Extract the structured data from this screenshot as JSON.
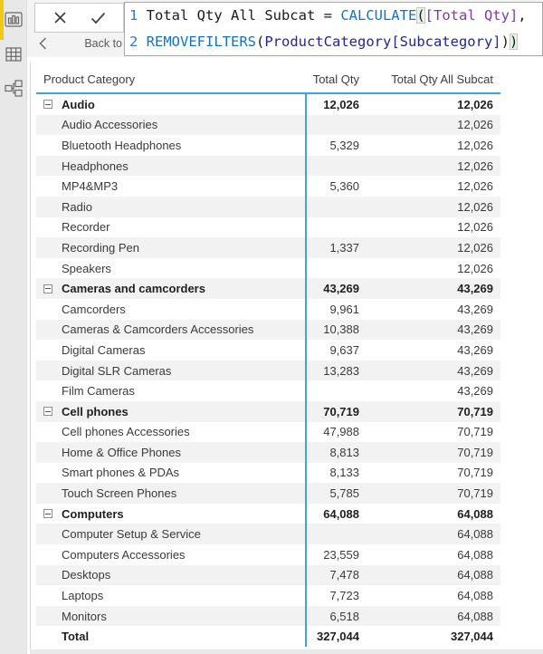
{
  "sidebar": {
    "items": [
      {
        "name": "report-view",
        "active": true
      },
      {
        "name": "data-view",
        "active": false
      },
      {
        "name": "model-view",
        "active": false
      }
    ]
  },
  "formula_bar": {
    "back_label": "Back to",
    "cancel_icon": "x-icon",
    "commit_icon": "check-icon",
    "lines": [
      {
        "number": "1",
        "tokens": [
          {
            "text": "Total Qty All Subcat = ",
            "type": "plain"
          },
          {
            "text": "CALCULATE",
            "type": "function"
          },
          {
            "text": "(",
            "type": "bracket"
          },
          {
            "text": "[Total Qty]",
            "type": "measure"
          },
          {
            "text": ",",
            "type": "plain"
          }
        ]
      },
      {
        "number": "2",
        "tokens": [
          {
            "text": "REMOVEFILTERS",
            "type": "function"
          },
          {
            "text": "(",
            "type": "plain"
          },
          {
            "text": "ProductCategory[Subcategory]",
            "type": "column"
          },
          {
            "text": ")",
            "type": "plain"
          },
          {
            "text": ")",
            "type": "bracket"
          }
        ]
      }
    ]
  },
  "matrix": {
    "columns": [
      "Product Category",
      "Total Qty",
      "Total Qty All Subcat"
    ],
    "rows": [
      {
        "label": "Audio",
        "type": "category",
        "qty": "12,026",
        "qty_all": "12,026"
      },
      {
        "label": "Audio Accessories",
        "type": "sub",
        "qty": "",
        "qty_all": "12,026"
      },
      {
        "label": "Bluetooth Headphones",
        "type": "sub",
        "qty": "5,329",
        "qty_all": "12,026"
      },
      {
        "label": "Headphones",
        "type": "sub",
        "qty": "",
        "qty_all": "12,026"
      },
      {
        "label": "MP4&MP3",
        "type": "sub",
        "qty": "5,360",
        "qty_all": "12,026"
      },
      {
        "label": "Radio",
        "type": "sub",
        "qty": "",
        "qty_all": "12,026"
      },
      {
        "label": "Recorder",
        "type": "sub",
        "qty": "",
        "qty_all": "12,026"
      },
      {
        "label": "Recording Pen",
        "type": "sub",
        "qty": "1,337",
        "qty_all": "12,026"
      },
      {
        "label": "Speakers",
        "type": "sub",
        "qty": "",
        "qty_all": "12,026"
      },
      {
        "label": "Cameras and camcorders",
        "type": "category",
        "qty": "43,269",
        "qty_all": "43,269"
      },
      {
        "label": "Camcorders",
        "type": "sub",
        "qty": "9,961",
        "qty_all": "43,269"
      },
      {
        "label": "Cameras & Camcorders Accessories",
        "type": "sub",
        "qty": "10,388",
        "qty_all": "43,269"
      },
      {
        "label": "Digital Cameras",
        "type": "sub",
        "qty": "9,637",
        "qty_all": "43,269"
      },
      {
        "label": "Digital SLR Cameras",
        "type": "sub",
        "qty": "13,283",
        "qty_all": "43,269"
      },
      {
        "label": "Film Cameras",
        "type": "sub",
        "qty": "",
        "qty_all": "43,269"
      },
      {
        "label": "Cell phones",
        "type": "category",
        "qty": "70,719",
        "qty_all": "70,719"
      },
      {
        "label": "Cell phones Accessories",
        "type": "sub",
        "qty": "47,988",
        "qty_all": "70,719"
      },
      {
        "label": "Home & Office Phones",
        "type": "sub",
        "qty": "8,813",
        "qty_all": "70,719"
      },
      {
        "label": "Smart phones & PDAs",
        "type": "sub",
        "qty": "8,133",
        "qty_all": "70,719"
      },
      {
        "label": "Touch Screen Phones",
        "type": "sub",
        "qty": "5,785",
        "qty_all": "70,719"
      },
      {
        "label": "Computers",
        "type": "category",
        "qty": "64,088",
        "qty_all": "64,088"
      },
      {
        "label": "Computer Setup & Service",
        "type": "sub",
        "qty": "",
        "qty_all": "64,088"
      },
      {
        "label": "Computers Accessories",
        "type": "sub",
        "qty": "23,559",
        "qty_all": "64,088"
      },
      {
        "label": "Desktops",
        "type": "sub",
        "qty": "7,478",
        "qty_all": "64,088"
      },
      {
        "label": "Laptops",
        "type": "sub",
        "qty": "7,723",
        "qty_all": "64,088"
      },
      {
        "label": "Monitors",
        "type": "sub",
        "qty": "6,518",
        "qty_all": "64,088"
      },
      {
        "label": "Total",
        "type": "total",
        "qty": "327,044",
        "qty_all": "327,044"
      }
    ]
  },
  "colors": {
    "accent_yellow": "#F2C811",
    "grid_blue": "#40A4DC",
    "alt_row": "#F2F2F2",
    "function_blue": "#1273C4",
    "measure_purple": "#7D3AA6",
    "column_navy": "#23239E"
  }
}
